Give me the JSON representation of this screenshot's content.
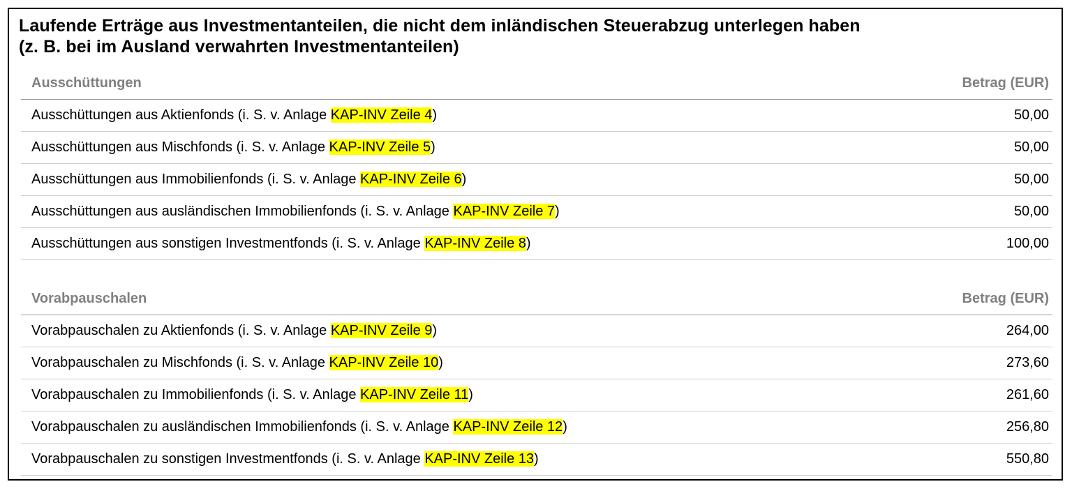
{
  "title": {
    "line1": "Laufende Erträge aus Investmentanteilen, die nicht dem inländischen Steuerabzug unterlegen haben",
    "line2": "(z. B. bei im Ausland verwahrten Investmentanteilen)"
  },
  "sections": [
    {
      "header": "Ausschüttungen",
      "amount_header": "Betrag (EUR)",
      "rows": [
        {
          "prefix": "Ausschüttungen aus Aktienfonds (i. S. v. Anlage ",
          "ref": "KAP-INV Zeile 4",
          "suffix": ")",
          "amount": "50,00"
        },
        {
          "prefix": "Ausschüttungen aus Mischfonds (i. S. v. Anlage ",
          "ref": "KAP-INV Zeile 5",
          "suffix": ")",
          "amount": "50,00"
        },
        {
          "prefix": "Ausschüttungen aus Immobilienfonds (i. S. v. Anlage ",
          "ref": "KAP-INV Zeile 6",
          "suffix": ")",
          "amount": "50,00"
        },
        {
          "prefix": "Ausschüttungen aus ausländischen Immobilienfonds (i. S. v. Anlage ",
          "ref": "KAP-INV Zeile 7",
          "suffix": ")",
          "amount": "50,00"
        },
        {
          "prefix": "Ausschüttungen aus sonstigen Investmentfonds (i. S. v. Anlage ",
          "ref": "KAP-INV Zeile 8",
          "suffix": ")",
          "amount": "100,00"
        }
      ]
    },
    {
      "header": "Vorabpauschalen",
      "amount_header": "Betrag (EUR)",
      "rows": [
        {
          "prefix": "Vorabpauschalen zu Aktienfonds (i. S. v. Anlage ",
          "ref": "KAP-INV Zeile 9",
          "suffix": ")",
          "amount": "264,00"
        },
        {
          "prefix": "Vorabpauschalen zu Mischfonds (i. S. v. Anlage ",
          "ref": "KAP-INV Zeile 10",
          "suffix": ")",
          "amount": "273,60"
        },
        {
          "prefix": "Vorabpauschalen zu Immobilienfonds (i. S. v. Anlage ",
          "ref": "KAP-INV Zeile 11",
          "suffix": ")",
          "amount": "261,60"
        },
        {
          "prefix": "Vorabpauschalen zu ausländischen Immobilienfonds (i. S. v. Anlage ",
          "ref": "KAP-INV Zeile 12",
          "suffix": ")",
          "amount": "256,80"
        },
        {
          "prefix": "Vorabpauschalen zu sonstigen Investmentfonds (i. S. v. Anlage ",
          "ref": "KAP-INV Zeile 13",
          "suffix": ")",
          "amount": "550,80"
        }
      ]
    }
  ],
  "colors": {
    "highlight": "#ffff00",
    "section_header": "#808080",
    "border": "#000000"
  }
}
